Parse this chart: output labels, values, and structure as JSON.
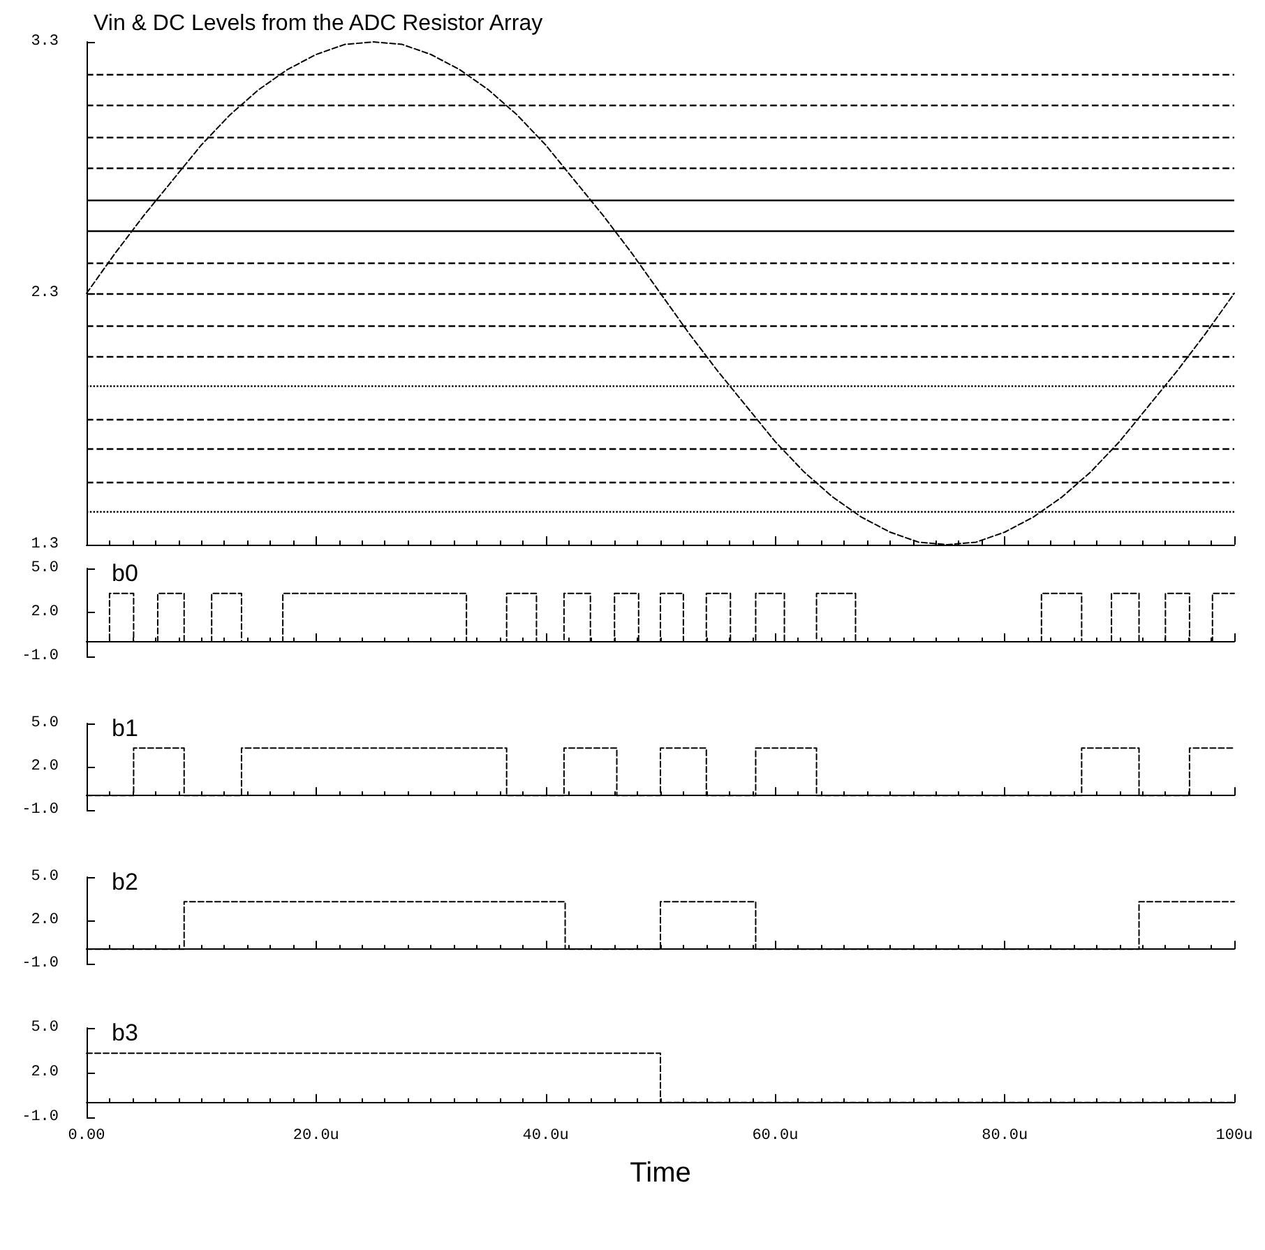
{
  "chart_data": [
    {
      "type": "line",
      "title": "Vin & DC Levels from the ADC Resistor Array",
      "xlim": [
        0,
        100
      ],
      "xticks": [
        0,
        20,
        40,
        60,
        80,
        100
      ],
      "ylim": [
        1.3,
        3.3
      ],
      "yticks": [
        1.3,
        2.3,
        3.3
      ],
      "tick_labels": "y",
      "grid": false,
      "marker": "none",
      "x": [
        0,
        2.5,
        5,
        7.5,
        10,
        12.5,
        15,
        17.5,
        20,
        22.5,
        25,
        27.5,
        30,
        32.5,
        35,
        37.5,
        40,
        42.5,
        45,
        47.5,
        50,
        52.5,
        55,
        57.5,
        60,
        62.5,
        65,
        67.5,
        70,
        72.5,
        75,
        77.5,
        80,
        82.5,
        85,
        87.5,
        90,
        92.5,
        95,
        97.5,
        100
      ],
      "series": [
        {
          "color": "#000000",
          "line_style": "dashed",
          "values": [
            2.3,
            2.46,
            2.61,
            2.75,
            2.89,
            3.01,
            3.11,
            3.19,
            3.25,
            3.29,
            3.3,
            3.29,
            3.25,
            3.19,
            3.11,
            3.01,
            2.89,
            2.75,
            2.61,
            2.46,
            2.3,
            2.14,
            1.99,
            1.85,
            1.71,
            1.59,
            1.49,
            1.41,
            1.35,
            1.31,
            1.3,
            1.31,
            1.35,
            1.41,
            1.49,
            1.59,
            1.71,
            1.85,
            1.99,
            2.14,
            2.3
          ]
        }
      ],
      "ref_lines": [
        {
          "axis": "y",
          "value": 1.425,
          "color": "#000000",
          "line_style": "dotted"
        },
        {
          "axis": "y",
          "value": 1.55,
          "color": "#000000",
          "line_style": "dashed"
        },
        {
          "axis": "y",
          "value": 1.675,
          "color": "#000000",
          "line_style": "dashed"
        },
        {
          "axis": "y",
          "value": 1.8,
          "color": "#000000",
          "line_style": "dashed"
        },
        {
          "axis": "y",
          "value": 1.925,
          "color": "#000000",
          "line_style": "dotted"
        },
        {
          "axis": "y",
          "value": 2.05,
          "color": "#000000",
          "line_style": "dashed"
        },
        {
          "axis": "y",
          "value": 2.175,
          "color": "#000000",
          "line_style": "dashed"
        },
        {
          "axis": "y",
          "value": 2.3,
          "color": "#000000",
          "line_style": "dashed"
        },
        {
          "axis": "y",
          "value": 2.425,
          "color": "#000000",
          "line_style": "dashed"
        },
        {
          "axis": "y",
          "value": 2.55,
          "color": "#000000",
          "line_style": "solid"
        },
        {
          "axis": "y",
          "value": 2.675,
          "color": "#000000",
          "line_style": "solid"
        },
        {
          "axis": "y",
          "value": 2.8,
          "color": "#000000",
          "line_style": "dashed"
        },
        {
          "axis": "y",
          "value": 2.925,
          "color": "#000000",
          "line_style": "dashed"
        },
        {
          "axis": "y",
          "value": 3.05,
          "color": "#000000",
          "line_style": "dashed"
        },
        {
          "axis": "y",
          "value": 3.175,
          "color": "#000000",
          "line_style": "dashed"
        }
      ]
    },
    {
      "type": "step",
      "title": "b0",
      "xlim": [
        0,
        100
      ],
      "xticks": [
        0,
        20,
        40,
        60,
        80,
        100
      ],
      "ylim": [
        -1,
        5
      ],
      "yticks": [
        {
          "value": -1,
          "label": "-1.0"
        },
        {
          "value": 2,
          "label": "2.0"
        },
        {
          "value": 5,
          "label": "5.0"
        }
      ],
      "tick_labels": "y",
      "grid": false,
      "marker": "none",
      "x": [
        0,
        2,
        4.1,
        6.2,
        8.5,
        10.9,
        13.5,
        17.1,
        33.1,
        36.6,
        39.2,
        41.6,
        43.9,
        46,
        48.1,
        50,
        52,
        54,
        56.1,
        58.3,
        60.8,
        63.6,
        67,
        83.2,
        86.7,
        89.3,
        91.7,
        94,
        96.1,
        98.1,
        100
      ],
      "series": [
        {
          "color": "#000000",
          "line_style": "dashed",
          "values": [
            0,
            3.3,
            0,
            3.3,
            0,
            3.3,
            0,
            3.3,
            0,
            3.3,
            0,
            3.3,
            0,
            3.3,
            0,
            3.3,
            0,
            3.3,
            0,
            3.3,
            0,
            3.3,
            0,
            3.3,
            0,
            3.3,
            0,
            3.3,
            0,
            3.3,
            3.3
          ]
        }
      ]
    },
    {
      "type": "step",
      "title": "b1",
      "xlim": [
        0,
        100
      ],
      "xticks": [
        0,
        20,
        40,
        60,
        80,
        100
      ],
      "ylim": [
        -1,
        5
      ],
      "yticks": [
        {
          "value": -1,
          "label": "-1.0"
        },
        {
          "value": 2,
          "label": "2.0"
        },
        {
          "value": 5,
          "label": "5.0"
        }
      ],
      "tick_labels": "y",
      "grid": false,
      "marker": "none",
      "x": [
        0,
        4.1,
        8.5,
        13.5,
        36.6,
        41.6,
        46.2,
        50,
        54,
        58.3,
        63.6,
        86.7,
        91.7,
        96.1,
        100
      ],
      "series": [
        {
          "color": "#000000",
          "line_style": "dashed",
          "values": [
            0,
            3.3,
            0,
            3.3,
            0,
            3.3,
            0,
            3.3,
            0,
            3.3,
            0,
            3.3,
            0,
            3.3,
            3.3
          ]
        }
      ]
    },
    {
      "type": "step",
      "title": "b2",
      "xlim": [
        0,
        100
      ],
      "xticks": [
        0,
        20,
        40,
        60,
        80,
        100
      ],
      "ylim": [
        -1,
        5
      ],
      "yticks": [
        {
          "value": -1,
          "label": "-1.0"
        },
        {
          "value": 2,
          "label": "2.0"
        },
        {
          "value": 5,
          "label": "5.0"
        }
      ],
      "tick_labels": "y",
      "grid": false,
      "marker": "none",
      "x": [
        0,
        8.5,
        41.7,
        50,
        58.3,
        91.7,
        100
      ],
      "series": [
        {
          "color": "#000000",
          "line_style": "dashed",
          "values": [
            0,
            3.3,
            0,
            3.3,
            0,
            3.3,
            3.3
          ]
        }
      ]
    },
    {
      "type": "step",
      "title": "b3",
      "xlabel": "Time",
      "xlim": [
        0,
        100
      ],
      "xticks": [
        {
          "value": 0,
          "label": "0.00"
        },
        {
          "value": 20,
          "label": "20.0u"
        },
        {
          "value": 40,
          "label": "40.0u"
        },
        {
          "value": 60,
          "label": "60.0u"
        },
        {
          "value": 80,
          "label": "80.0u"
        },
        {
          "value": 100,
          "label": "100u"
        }
      ],
      "ylim": [
        -1,
        5
      ],
      "yticks": [
        {
          "value": -1,
          "label": "-1.0"
        },
        {
          "value": 2,
          "label": "2.0"
        },
        {
          "value": 5,
          "label": "5.0"
        }
      ],
      "grid": false,
      "marker": "none",
      "x": [
        0,
        50,
        100
      ],
      "series": [
        {
          "color": "#000000",
          "line_style": "dashed",
          "values": [
            3.3,
            0,
            0
          ]
        }
      ]
    }
  ]
}
